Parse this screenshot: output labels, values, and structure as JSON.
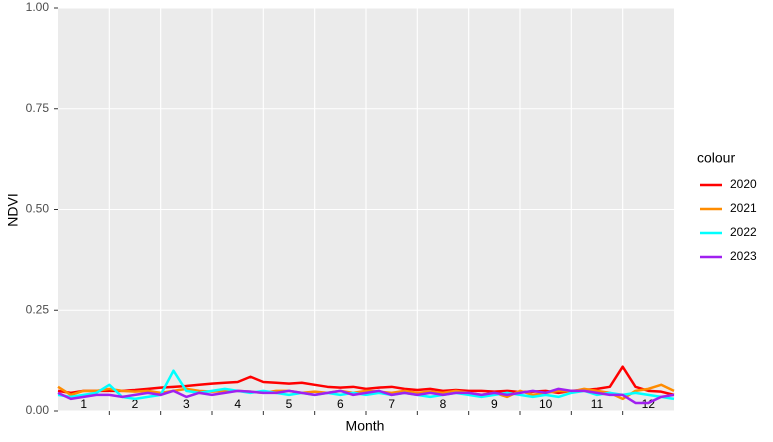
{
  "chart_data": {
    "type": "line",
    "x_label": "Month",
    "y_label": "NDVI",
    "legend_title": "colour",
    "categories": [
      "1",
      "2",
      "3",
      "4",
      "5",
      "6",
      "7",
      "8",
      "9",
      "10",
      "11",
      "12"
    ],
    "x": [
      0,
      0.25,
      0.5,
      0.75,
      1,
      1.25,
      1.5,
      1.75,
      2,
      2.25,
      2.5,
      2.75,
      3,
      3.25,
      3.5,
      3.75,
      4,
      4.25,
      4.5,
      4.75,
      5,
      5.25,
      5.5,
      5.75,
      6,
      6.25,
      6.5,
      6.75,
      7,
      7.25,
      7.5,
      7.75,
      8,
      8.25,
      8.5,
      8.75,
      9,
      9.25,
      9.5,
      9.75,
      10,
      10.25,
      10.5,
      10.75,
      11,
      11.25,
      11.5,
      11.75,
      12
    ],
    "xlim": [
      0,
      12
    ],
    "xticks": [
      1,
      2,
      3,
      4,
      5,
      6,
      7,
      8,
      9,
      10,
      11
    ],
    "ylim": [
      0,
      1
    ],
    "yticks": [
      {
        "value": 0,
        "label": "0.00"
      },
      {
        "value": 0.25,
        "label": "0.25"
      },
      {
        "value": 0.5,
        "label": "0.50"
      },
      {
        "value": 0.75,
        "label": "0.75"
      },
      {
        "value": 1,
        "label": "1.00"
      }
    ],
    "grid": true,
    "series": [
      {
        "name": "2020",
        "color": "#ff0000",
        "values": [
          0.05,
          0.045,
          0.05,
          0.05,
          0.05,
          0.05,
          0.052,
          0.055,
          0.058,
          0.06,
          0.062,
          0.065,
          0.068,
          0.07,
          0.072,
          0.085,
          0.072,
          0.07,
          0.068,
          0.07,
          0.065,
          0.06,
          0.058,
          0.06,
          0.055,
          0.058,
          0.06,
          0.055,
          0.052,
          0.055,
          0.05,
          0.052,
          0.05,
          0.05,
          0.048,
          0.05,
          0.047,
          0.048,
          0.05,
          0.045,
          0.05,
          0.052,
          0.055,
          0.06,
          0.11,
          0.06,
          0.05,
          0.048,
          0.04
        ]
      },
      {
        "name": "2021",
        "color": "#ff8c00",
        "values": [
          0.06,
          0.04,
          0.05,
          0.05,
          0.055,
          0.05,
          0.048,
          0.05,
          0.045,
          0.05,
          0.055,
          0.05,
          0.048,
          0.05,
          0.05,
          0.048,
          0.045,
          0.05,
          0.05,
          0.045,
          0.048,
          0.045,
          0.05,
          0.045,
          0.05,
          0.048,
          0.045,
          0.05,
          0.045,
          0.048,
          0.045,
          0.05,
          0.045,
          0.04,
          0.045,
          0.035,
          0.05,
          0.04,
          0.045,
          0.05,
          0.048,
          0.055,
          0.05,
          0.045,
          0.03,
          0.05,
          0.055,
          0.065,
          0.05
        ]
      },
      {
        "name": "2022",
        "color": "#00ffff",
        "values": [
          0.04,
          0.035,
          0.04,
          0.045,
          0.065,
          0.035,
          0.03,
          0.035,
          0.04,
          0.1,
          0.05,
          0.045,
          0.05,
          0.055,
          0.05,
          0.045,
          0.05,
          0.045,
          0.04,
          0.045,
          0.04,
          0.045,
          0.04,
          0.045,
          0.04,
          0.045,
          0.04,
          0.045,
          0.04,
          0.035,
          0.04,
          0.045,
          0.04,
          0.035,
          0.04,
          0.045,
          0.04,
          0.035,
          0.04,
          0.035,
          0.045,
          0.05,
          0.04,
          0.045,
          0.04,
          0.045,
          0.04,
          0.035,
          0.03
        ]
      },
      {
        "name": "2023",
        "color": "#a020f0",
        "values": [
          0.045,
          0.03,
          0.035,
          0.04,
          0.04,
          0.035,
          0.04,
          0.045,
          0.04,
          0.05,
          0.035,
          0.045,
          0.04,
          0.045,
          0.05,
          0.048,
          0.045,
          0.045,
          0.05,
          0.045,
          0.04,
          0.045,
          0.05,
          0.04,
          0.045,
          0.05,
          0.04,
          0.045,
          0.04,
          0.045,
          0.04,
          0.045,
          0.045,
          0.04,
          0.045,
          0.04,
          0.045,
          0.05,
          0.045,
          0.055,
          0.05,
          0.05,
          0.045,
          0.04,
          0.04,
          0.02,
          0.02,
          0.035,
          0.04
        ]
      }
    ]
  }
}
